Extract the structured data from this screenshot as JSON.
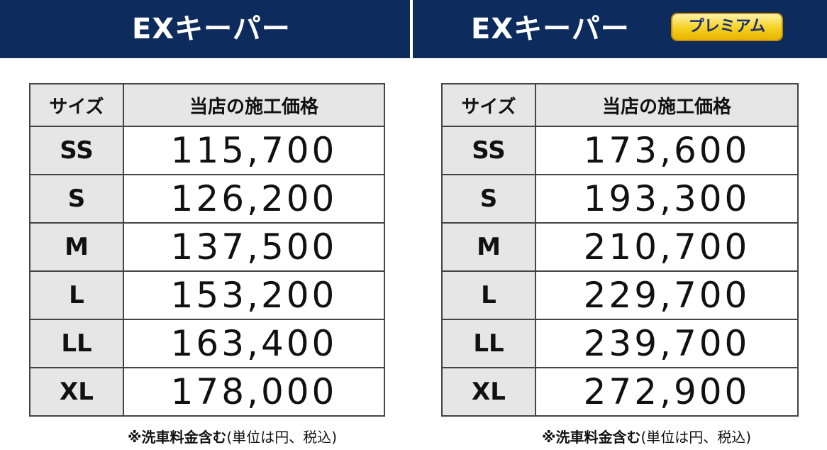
{
  "left": {
    "title": "EXキーパー",
    "header": {
      "size": "サイズ",
      "price": "当店の施工価格"
    },
    "rows": [
      {
        "size": "SS",
        "price": "115,700"
      },
      {
        "size": "S",
        "price": "126,200"
      },
      {
        "size": "M",
        "price": "137,500"
      },
      {
        "size": "L",
        "price": "153,200"
      },
      {
        "size": "LL",
        "price": "163,400"
      },
      {
        "size": "XL",
        "price": "178,000"
      }
    ],
    "note_bold": "※洗車料金含む",
    "note_rest": "(単位は円、税込)"
  },
  "right": {
    "title": "EXキーパー",
    "badge": "プレミアム",
    "header": {
      "size": "サイズ",
      "price": "当店の施工価格"
    },
    "rows": [
      {
        "size": "SS",
        "price": "173,600"
      },
      {
        "size": "S",
        "price": "193,300"
      },
      {
        "size": "M",
        "price": "210,700"
      },
      {
        "size": "L",
        "price": "229,700"
      },
      {
        "size": "LL",
        "price": "239,700"
      },
      {
        "size": "XL",
        "price": "272,900"
      }
    ],
    "note_bold": "※洗車料金含む",
    "note_rest": "(単位は円、税込)"
  },
  "colors": {
    "banner": "#0d2b5c",
    "header_cell": "#e6e6e6",
    "badge_gold": "#f5d020",
    "badge_text": "#1a2f6e"
  }
}
